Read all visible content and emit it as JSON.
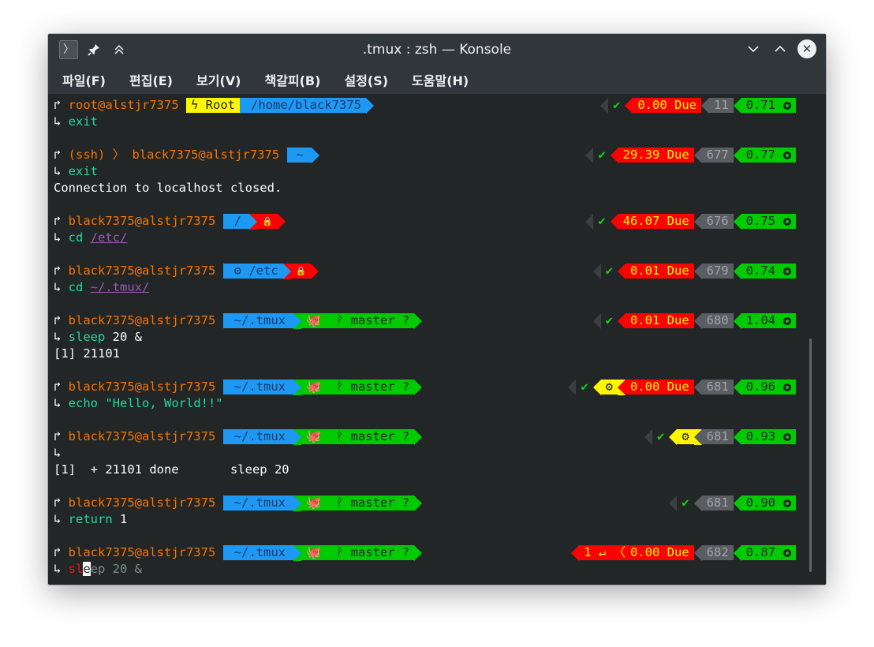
{
  "window": {
    "title": ".tmux : zsh — Konsole",
    "icons": [
      "terminal-app-icon",
      "pin-icon",
      "keep-above-icon",
      "minimize-icon",
      "maximize-icon",
      "close-icon"
    ]
  },
  "menu": [
    "파일(F)",
    "편집(E)",
    "보기(V)",
    "책갈피(B)",
    "설정(S)",
    "도움말(H)"
  ],
  "colors": {
    "background": "#232627",
    "user": "#f67400",
    "command": "#1cdc9a",
    "segment_blue": "#1d99f3",
    "segment_red": "#fd0000",
    "segment_green": "#00cb00",
    "segment_yellow": "#fff700",
    "segment_grey": "#5a5e62"
  },
  "prompts": [
    {
      "user": "root@alstjr7375",
      "seg1": "ϟ Root",
      "seg2": "/home/black7375",
      "status": "✔",
      "time": "0.00 Due",
      "count": "11",
      "load": "0.71",
      "command": "exit"
    },
    {
      "prefix": "(ssh) 〉",
      "user": "black7375@alstjr7375",
      "seg2": "~",
      "status": "✔",
      "time": "29.39 Due",
      "count": "677",
      "load": "0.77",
      "command": "exit",
      "output": "Connection to localhost closed."
    },
    {
      "user": "black7375@alstjr7375",
      "seg2": "/",
      "lock": "🔒",
      "status": "✔",
      "time": "46.07 Due",
      "count": "676",
      "load": "0.75",
      "command": "cd",
      "arg": "/etc/"
    },
    {
      "user": "black7375@alstjr7375",
      "seg2": "⚙ /etc",
      "lock": "🔒",
      "status": "✔",
      "time": "0.01 Due",
      "count": "679",
      "load": "0.74",
      "command": "cd",
      "arg": "~/.tmux/"
    },
    {
      "user": "black7375@alstjr7375",
      "seg2": "~/.tmux",
      "git": "master ?",
      "status": "✔",
      "time": "0.01 Due",
      "count": "680",
      "load": "1.04",
      "command": "sleep",
      "rest": " 20 &",
      "output": "[1] 21101"
    },
    {
      "user": "black7375@alstjr7375",
      "seg2": "~/.tmux",
      "git": "master ?",
      "status": "✔",
      "jobs": "⚙",
      "time": "0.00 Due",
      "count": "681",
      "load": "0.96",
      "command": "echo",
      "rest": " \"Hello, World!!\""
    },
    {
      "user": "black7375@alstjr7375",
      "seg2": "~/.tmux",
      "git": "master ?",
      "status": "✔",
      "jobs": "⚙",
      "count": "681",
      "load": "0.93",
      "command": "",
      "output": "[1]  + 21101 done       sleep 20"
    },
    {
      "user": "black7375@alstjr7375",
      "seg2": "~/.tmux",
      "git": "master ?",
      "status": "✔",
      "count": "681",
      "load": "0.90",
      "command": "return",
      "rest": " 1"
    },
    {
      "user": "black7375@alstjr7375",
      "seg2": "~/.tmux",
      "git": "master ?",
      "error": "1 ↵ 〈",
      "time": "0.00 Due",
      "count": "682",
      "load": "0.87",
      "typed_red": "sl",
      "cursor_char": "e",
      "typed_dim": "ep 20 &"
    }
  ]
}
